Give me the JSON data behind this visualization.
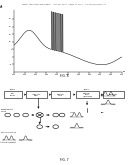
{
  "background_color": "#ffffff",
  "header_text": "Patent Application Publication    Aug. 28, 2014   Sheet 11 of 14    US 2014/0241666 A1",
  "fig6_label": "FIG. 6",
  "fig7_label": "FIG. 7"
}
